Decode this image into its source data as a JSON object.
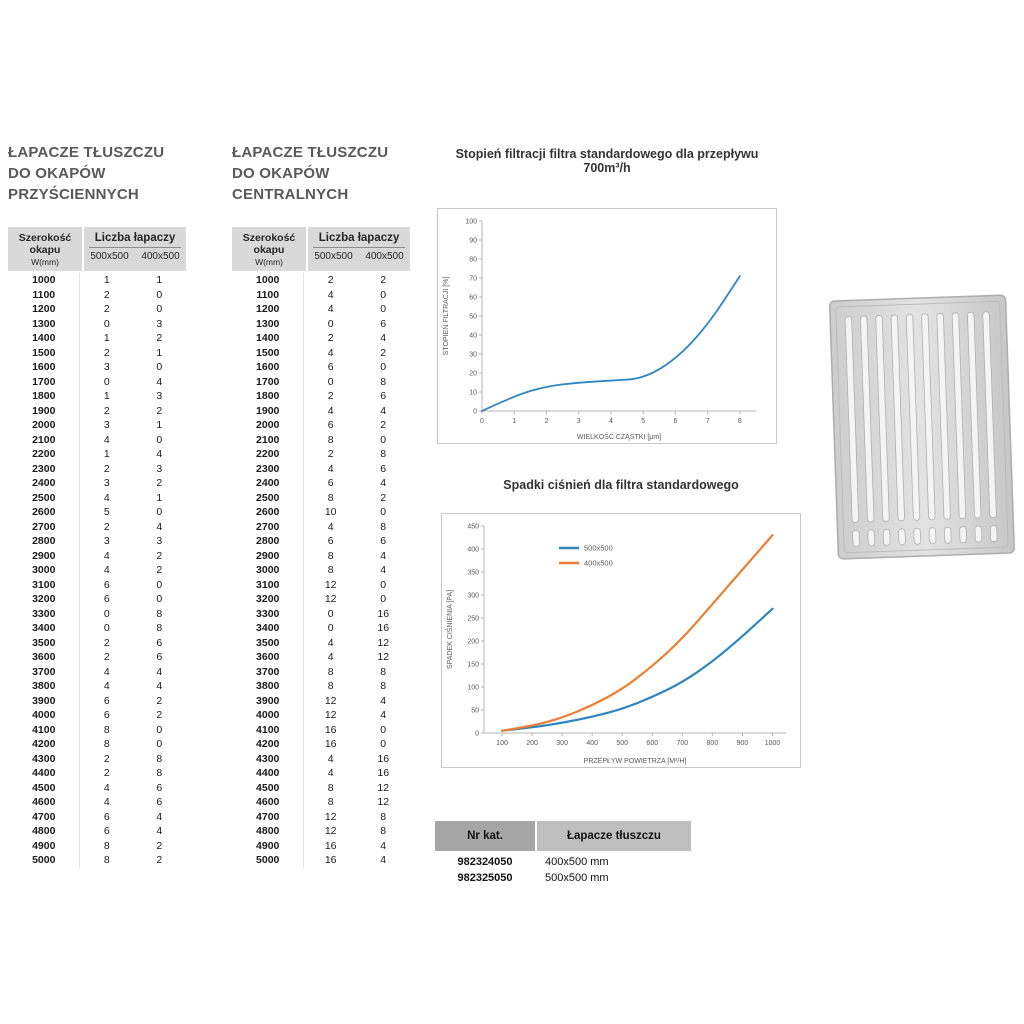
{
  "left_table": {
    "title_lines": [
      "ŁAPACZE TŁUSZCZU",
      "DO OKAPÓW",
      "PRZYŚCIENNYCH"
    ],
    "header": {
      "col1": "Szerokość okapu",
      "col1_sub": "W(mm)",
      "group": "Liczba łapaczy",
      "cols": [
        "500x500",
        "400x500"
      ]
    },
    "rows": [
      [
        1000,
        1,
        1
      ],
      [
        1100,
        2,
        0
      ],
      [
        1200,
        2,
        0
      ],
      [
        1300,
        0,
        3
      ],
      [
        1400,
        1,
        2
      ],
      [
        1500,
        2,
        1
      ],
      [
        1600,
        3,
        0
      ],
      [
        1700,
        0,
        4
      ],
      [
        1800,
        1,
        3
      ],
      [
        1900,
        2,
        2
      ],
      [
        2000,
        3,
        1
      ],
      [
        2100,
        4,
        0
      ],
      [
        2200,
        1,
        4
      ],
      [
        2300,
        2,
        3
      ],
      [
        2400,
        3,
        2
      ],
      [
        2500,
        4,
        1
      ],
      [
        2600,
        5,
        0
      ],
      [
        2700,
        2,
        4
      ],
      [
        2800,
        3,
        3
      ],
      [
        2900,
        4,
        2
      ],
      [
        3000,
        4,
        2
      ],
      [
        3100,
        6,
        0
      ],
      [
        3200,
        6,
        0
      ],
      [
        3300,
        0,
        8
      ],
      [
        3400,
        0,
        8
      ],
      [
        3500,
        2,
        6
      ],
      [
        3600,
        2,
        6
      ],
      [
        3700,
        4,
        4
      ],
      [
        3800,
        4,
        4
      ],
      [
        3900,
        6,
        2
      ],
      [
        4000,
        6,
        2
      ],
      [
        4100,
        8,
        0
      ],
      [
        4200,
        8,
        0
      ],
      [
        4300,
        2,
        8
      ],
      [
        4400,
        2,
        8
      ],
      [
        4500,
        4,
        6
      ],
      [
        4600,
        4,
        6
      ],
      [
        4700,
        6,
        4
      ],
      [
        4800,
        6,
        4
      ],
      [
        4900,
        8,
        2
      ],
      [
        5000,
        8,
        2
      ]
    ]
  },
  "center_table": {
    "title_lines": [
      "ŁAPACZE TŁUSZCZU",
      "DO OKAPÓW",
      "CENTRALNYCH"
    ],
    "header": {
      "col1": "Szerokość okapu",
      "col1_sub": "W(mm)",
      "group": "Liczba łapaczy",
      "cols": [
        "500x500",
        "400x500"
      ]
    },
    "rows": [
      [
        1000,
        2,
        2
      ],
      [
        1100,
        4,
        0
      ],
      [
        1200,
        4,
        0
      ],
      [
        1300,
        0,
        6
      ],
      [
        1400,
        2,
        4
      ],
      [
        1500,
        4,
        2
      ],
      [
        1600,
        6,
        0
      ],
      [
        1700,
        0,
        8
      ],
      [
        1800,
        2,
        6
      ],
      [
        1900,
        4,
        4
      ],
      [
        2000,
        6,
        2
      ],
      [
        2100,
        8,
        0
      ],
      [
        2200,
        2,
        8
      ],
      [
        2300,
        4,
        6
      ],
      [
        2400,
        6,
        4
      ],
      [
        2500,
        8,
        2
      ],
      [
        2600,
        10,
        0
      ],
      [
        2700,
        4,
        8
      ],
      [
        2800,
        6,
        6
      ],
      [
        2900,
        8,
        4
      ],
      [
        3000,
        8,
        4
      ],
      [
        3100,
        12,
        0
      ],
      [
        3200,
        12,
        0
      ],
      [
        3300,
        0,
        16
      ],
      [
        3400,
        0,
        16
      ],
      [
        3500,
        4,
        12
      ],
      [
        3600,
        4,
        12
      ],
      [
        3700,
        8,
        8
      ],
      [
        3800,
        8,
        8
      ],
      [
        3900,
        12,
        4
      ],
      [
        4000,
        12,
        4
      ],
      [
        4100,
        16,
        0
      ],
      [
        4200,
        16,
        0
      ],
      [
        4300,
        4,
        16
      ],
      [
        4400,
        4,
        16
      ],
      [
        4500,
        8,
        12
      ],
      [
        4600,
        8,
        12
      ],
      [
        4700,
        12,
        8
      ],
      [
        4800,
        12,
        8
      ],
      [
        4900,
        16,
        4
      ],
      [
        5000,
        16,
        4
      ]
    ]
  },
  "chart_data": [
    {
      "type": "line",
      "title": "Stopień filtracji filtra standardowego dla przepływu 700m³/h",
      "xlabel": "WIELKOŚĆ CZĄSTKI [μm]",
      "ylabel": "STOPIEŃ FILTRACJI [%]",
      "x": [
        0,
        1,
        2,
        3,
        4,
        5,
        6,
        7,
        8
      ],
      "series": [
        {
          "name": "filtracja",
          "color": "#2e86c1",
          "values": [
            0,
            8,
            13,
            15,
            16,
            17,
            27,
            45,
            71
          ]
        }
      ],
      "xlim": [
        0,
        8.5
      ],
      "ylim": [
        0,
        100
      ],
      "xticks": [
        0,
        1,
        2,
        3,
        4,
        5,
        6,
        7,
        8
      ],
      "yticks": [
        0,
        10,
        20,
        30,
        40,
        50,
        60,
        70,
        80,
        90,
        100
      ],
      "grid": false,
      "legend": false
    },
    {
      "type": "line",
      "title": "Spadki ciśnień dla filtra standardowego",
      "xlabel": "PRZEPŁYW POWIETRZA [M³/H]",
      "ylabel": "SPADEK CIŚNIENIA [PA]",
      "x": [
        100,
        200,
        300,
        400,
        500,
        600,
        700,
        800,
        900,
        1000
      ],
      "series": [
        {
          "name": "500x500",
          "color": "#2e86c1",
          "values": [
            5,
            12,
            22,
            35,
            52,
            78,
            110,
            155,
            210,
            270
          ]
        },
        {
          "name": "400x500",
          "color": "#ed7d31",
          "values": [
            5,
            15,
            33,
            60,
            95,
            145,
            205,
            280,
            355,
            430
          ]
        }
      ],
      "xlim": [
        40,
        1045
      ],
      "ylim": [
        0,
        450
      ],
      "xticks": [
        100,
        200,
        300,
        400,
        500,
        600,
        700,
        800,
        900,
        1000
      ],
      "yticks": [
        0,
        50,
        100,
        150,
        200,
        250,
        300,
        350,
        400,
        450
      ],
      "grid": false,
      "legend": true,
      "legend_position": "top-left"
    }
  ],
  "catalog_table": {
    "headers": [
      "Nr kat.",
      "Łapacze tłuszczu"
    ],
    "rows": [
      [
        "982324050",
        "400x500 mm"
      ],
      [
        "982325050",
        "500x500 mm"
      ]
    ]
  },
  "colors": {
    "accent_blue": "#2e86c1",
    "accent_orange": "#ed7d31",
    "header_grey": "#d9d9d9"
  }
}
